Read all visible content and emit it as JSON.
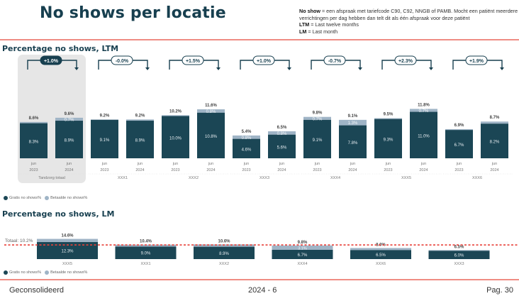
{
  "header": {
    "title": "No shows per locatie",
    "definitions": [
      {
        "term": "No show",
        "text": " = een afspraak met tariefcode C90, C92, NNGB of PAMB. Mocht een patiënt meerdere verrichtingen per dag hebben dan telt dit als één afspraak voor deze patiënt"
      },
      {
        "term": "LTM",
        "text": " = Last twelve months"
      },
      {
        "term": "LM",
        "text": " = Last month"
      }
    ]
  },
  "colors": {
    "gratis": "#1b4655",
    "betaalde": "#9fb4c6",
    "accent_rule": "#ef8c84",
    "total_line": "#e8413a",
    "highlight_bg": "#e6e6e6"
  },
  "legend": {
    "gratis": "Gratis no shows%",
    "betaalde": "Betaalde no shows%"
  },
  "chart_data": [
    {
      "type": "bar",
      "stacked": true,
      "title": "Percentage no shows, LTM",
      "xlabel": "",
      "ylabel": "",
      "legend_position": "bottom-left",
      "groups": [
        {
          "name": "Tandzorg totaal",
          "highlight": true,
          "delta": "+1.0%",
          "delta_filled": true,
          "bars": [
            {
              "month": "jun",
              "year": "2023",
              "gratis": 8.3,
              "betaalde": 0.3,
              "total": 8.6,
              "gratis_label": "8.3%",
              "betaalde_label": "",
              "total_label": "8.6%"
            },
            {
              "month": "jun",
              "year": "2024",
              "gratis": 8.9,
              "betaalde": 0.7,
              "total": 9.6,
              "gratis_label": "8.9%",
              "betaalde_label": "0.7%",
              "total_label": "9.6%"
            }
          ]
        },
        {
          "name": "XXX1",
          "highlight": false,
          "delta": "-0.0%",
          "delta_filled": false,
          "bars": [
            {
              "month": "jun",
              "year": "2023",
              "gratis": 9.1,
              "betaalde": 0.1,
              "total": 9.2,
              "gratis_label": "9.1%",
              "betaalde_label": "",
              "total_label": "9.2%"
            },
            {
              "month": "jun",
              "year": "2024",
              "gratis": 8.9,
              "betaalde": 0.3,
              "total": 9.2,
              "gratis_label": "8.9%",
              "betaalde_label": "",
              "total_label": "9.2%"
            }
          ]
        },
        {
          "name": "XXX2",
          "highlight": false,
          "delta": "+1.5%",
          "delta_filled": false,
          "bars": [
            {
              "month": "jun",
              "year": "2023",
              "gratis": 10.0,
              "betaalde": 0.2,
              "total": 10.2,
              "gratis_label": "10.0%",
              "betaalde_label": "",
              "total_label": "10.2%"
            },
            {
              "month": "jun",
              "year": "2024",
              "gratis": 10.8,
              "betaalde": 0.8,
              "total": 11.6,
              "gratis_label": "10.8%",
              "betaalde_label": "0.8%",
              "total_label": "11.6%"
            }
          ]
        },
        {
          "name": "XXX3",
          "highlight": false,
          "delta": "+1.0%",
          "delta_filled": false,
          "bars": [
            {
              "month": "jun",
              "year": "2023",
              "gratis": 4.6,
              "betaalde": 0.8,
              "total": 5.4,
              "gratis_label": "4.6%",
              "betaalde_label": "0.8%",
              "total_label": "5.4%"
            },
            {
              "month": "jun",
              "year": "2024",
              "gratis": 5.6,
              "betaalde": 0.8,
              "total": 6.5,
              "gratis_label": "5.6%",
              "betaalde_label": "0.8%",
              "total_label": "6.5%"
            }
          ]
        },
        {
          "name": "XXX4",
          "highlight": false,
          "delta": "-0.7%",
          "delta_filled": false,
          "bars": [
            {
              "month": "jun",
              "year": "2023",
              "gratis": 9.1,
              "betaalde": 0.7,
              "total": 9.8,
              "gratis_label": "9.1%",
              "betaalde_label": "0.7%",
              "total_label": "9.8%"
            },
            {
              "month": "jun",
              "year": "2024",
              "gratis": 7.8,
              "betaalde": 1.3,
              "total": 9.1,
              "gratis_label": "7.8%",
              "betaalde_label": "1.3%",
              "total_label": "9.1%"
            }
          ]
        },
        {
          "name": "XXX5",
          "highlight": false,
          "delta": "+2.3%",
          "delta_filled": false,
          "bars": [
            {
              "month": "jun",
              "year": "2023",
              "gratis": 9.3,
              "betaalde": 0.2,
              "total": 9.5,
              "gratis_label": "9.3%",
              "betaalde_label": "",
              "total_label": "9.5%"
            },
            {
              "month": "jun",
              "year": "2024",
              "gratis": 11.0,
              "betaalde": 0.7,
              "total": 11.8,
              "gratis_label": "11.0%",
              "betaalde_label": "0.7%",
              "total_label": "11.8%"
            }
          ]
        },
        {
          "name": "XXX6",
          "highlight": false,
          "delta": "+1.9%",
          "delta_filled": false,
          "bars": [
            {
              "month": "jun",
              "year": "2023",
              "gratis": 6.7,
              "betaalde": 0.2,
              "total": 6.9,
              "gratis_label": "6.7%",
              "betaalde_label": "",
              "total_label": "6.9%"
            },
            {
              "month": "jun",
              "year": "2024",
              "gratis": 8.2,
              "betaalde": 0.5,
              "total": 8.7,
              "gratis_label": "8.2%",
              "betaalde_label": "",
              "total_label": "8.7%"
            }
          ]
        }
      ]
    },
    {
      "type": "bar",
      "stacked": true,
      "title": "Percentage no shows, LM",
      "xlabel": "",
      "ylabel": "",
      "legend_position": "bottom-left",
      "reference_line": {
        "label": "Totaal: 10.2%",
        "value": 10.2
      },
      "categories": [
        "XXX5",
        "XXX1",
        "XXX2",
        "XXX4",
        "XXX6",
        "XXX3"
      ],
      "series": [
        {
          "name": "Gratis no shows%",
          "values": [
            12.3,
            9.0,
            8.9,
            6.7,
            6.5,
            6.0
          ],
          "labels": [
            "12.3%",
            "9.0%",
            "8.9%",
            "6.7%",
            "6.5%",
            "6.0%"
          ]
        },
        {
          "name": "Betaalde no shows%",
          "values": [
            2.3,
            1.4,
            1.7,
            3.1,
            1.5,
            0.5
          ],
          "labels": [
            "",
            "",
            "",
            "3.1%",
            "",
            ""
          ]
        }
      ],
      "totals": [
        14.6,
        10.4,
        10.6,
        9.8,
        8.0,
        6.5
      ],
      "total_labels": [
        "14.6%",
        "10.4%",
        "10.6%",
        "9.8%",
        "8.0%",
        "6.5%"
      ]
    }
  ],
  "footer": {
    "left": "Geconsolideerd",
    "center": "2024 - 6",
    "right": "Pag. 30"
  }
}
